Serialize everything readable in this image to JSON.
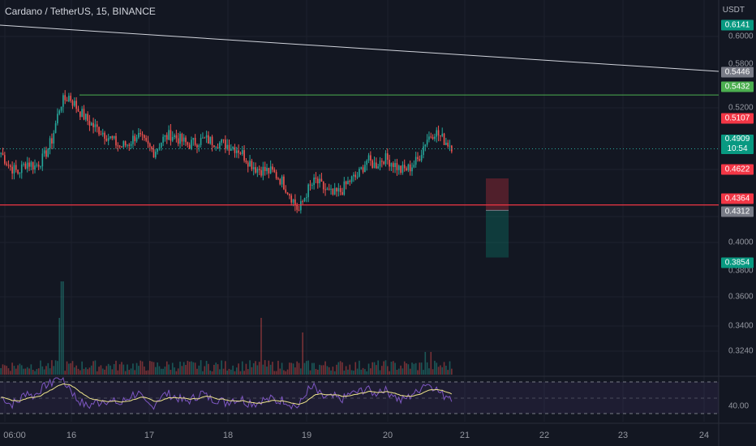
{
  "header": {
    "title": "Cardano / TetherUS, 15, BINANCE",
    "currency": "USDT"
  },
  "price_axis": {
    "ticks": [
      "0.6000",
      "0.5800",
      "0.5200",
      "0.4000",
      "0.3800",
      "0.3600",
      "0.3400",
      "0.3240"
    ]
  },
  "price_badges": [
    {
      "label": "0.6141",
      "color": "#089981"
    },
    {
      "label": "0.5446",
      "color": "#787b86"
    },
    {
      "label": "0.5432",
      "color": "#4caf50"
    },
    {
      "label": "0.5107",
      "color": "#f23645"
    },
    {
      "label": "0.4909",
      "sublabel": "10:54",
      "color": "#089981"
    },
    {
      "label": "0.4622",
      "color": "#f23645"
    },
    {
      "label": "0.4364",
      "color": "#f23645"
    },
    {
      "label": "0.4312",
      "color": "#787b86"
    },
    {
      "label": "0.3854",
      "color": "#089981"
    }
  ],
  "time_axis": {
    "labels": [
      "06:00",
      "16",
      "17",
      "18",
      "19",
      "20",
      "21",
      "22",
      "23",
      "24"
    ]
  },
  "rsi": {
    "level_label": "40.00"
  },
  "colors": {
    "background": "#131722",
    "up": "#26a69a",
    "down": "#ef5350",
    "trendline": "#d1d4dc",
    "resistance": "#4caf50",
    "support": "#f23645",
    "rsi_line": "#7e57c2",
    "rsi_ma": "#f0e68c"
  },
  "chart_data": {
    "type": "candlestick",
    "title": "Cardano / TetherUS, 15, BINANCE",
    "x_labels": [
      "06:00",
      "16",
      "17",
      "18",
      "19",
      "20",
      "21",
      "22",
      "23",
      "24"
    ],
    "price_ticks": [
      0.6,
      0.58,
      0.52,
      0.4,
      0.38,
      0.36,
      0.34,
      0.324
    ],
    "close_path": [
      0.487,
      0.474,
      0.468,
      0.478,
      0.474,
      0.482,
      0.5,
      0.535,
      0.542,
      0.53,
      0.52,
      0.512,
      0.507,
      0.5,
      0.493,
      0.496,
      0.505,
      0.495,
      0.488,
      0.5,
      0.505,
      0.5,
      0.495,
      0.498,
      0.5,
      0.498,
      0.496,
      0.494,
      0.49,
      0.48,
      0.472,
      0.47,
      0.468,
      0.46,
      0.447,
      0.43,
      0.45,
      0.46,
      0.452,
      0.446,
      0.45,
      0.46,
      0.465,
      0.48,
      0.475,
      0.482,
      0.478,
      0.47,
      0.472,
      0.48,
      0.5,
      0.508,
      0.5,
      0.494
    ],
    "levels": {
      "resistance": 0.5432,
      "support": 0.4364,
      "current": 0.4909,
      "stop": 0.4622,
      "entry": 0.4312,
      "target": 0.3854
    },
    "grid": true
  }
}
